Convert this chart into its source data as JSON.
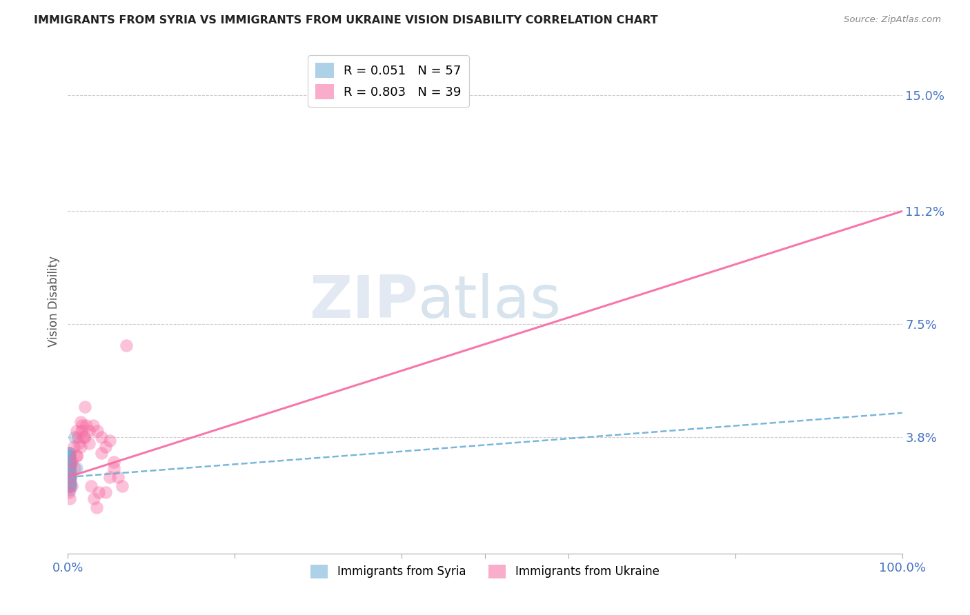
{
  "title": "IMMIGRANTS FROM SYRIA VS IMMIGRANTS FROM UKRAINE VISION DISABILITY CORRELATION CHART",
  "source": "Source: ZipAtlas.com",
  "ylabel_label": "Vision Disability",
  "ytick_labels": [
    "",
    "3.8%",
    "7.5%",
    "11.2%",
    "15.0%"
  ],
  "ytick_values": [
    0.0,
    0.038,
    0.075,
    0.112,
    0.15
  ],
  "xlim": [
    0.0,
    1.0
  ],
  "ylim": [
    0.0,
    0.165
  ],
  "R_syria": 0.051,
  "N_syria": 57,
  "R_ukraine": 0.803,
  "N_ukraine": 39,
  "syria_color": "#6baed6",
  "ukraine_color": "#f768a1",
  "watermark_zip": "ZIP",
  "watermark_atlas": "atlas",
  "syria_line_x": [
    0.0,
    1.0
  ],
  "syria_line_y": [
    0.025,
    0.046
  ],
  "ukraine_line_x": [
    0.0,
    1.0
  ],
  "ukraine_line_y": [
    0.025,
    0.112
  ],
  "syria_scatter_x": [
    0.001,
    0.002,
    0.001,
    0.002,
    0.003,
    0.001,
    0.002,
    0.003,
    0.001,
    0.002,
    0.003,
    0.002,
    0.001,
    0.003,
    0.002,
    0.001,
    0.003,
    0.002,
    0.001,
    0.002,
    0.003,
    0.001,
    0.002,
    0.001,
    0.002,
    0.001,
    0.002,
    0.003,
    0.001,
    0.002,
    0.001,
    0.002,
    0.003,
    0.001,
    0.002,
    0.001,
    0.002,
    0.001,
    0.002,
    0.001,
    0.002,
    0.001,
    0.002,
    0.001,
    0.002,
    0.001,
    0.002,
    0.001,
    0.002,
    0.003,
    0.001,
    0.002,
    0.001,
    0.002,
    0.001,
    0.01,
    0.008
  ],
  "syria_scatter_y": [
    0.03,
    0.028,
    0.033,
    0.025,
    0.022,
    0.031,
    0.026,
    0.029,
    0.024,
    0.027,
    0.023,
    0.032,
    0.028,
    0.026,
    0.021,
    0.029,
    0.025,
    0.033,
    0.027,
    0.03,
    0.024,
    0.028,
    0.022,
    0.031,
    0.026,
    0.023,
    0.029,
    0.027,
    0.032,
    0.025,
    0.028,
    0.024,
    0.03,
    0.022,
    0.027,
    0.031,
    0.025,
    0.029,
    0.023,
    0.028,
    0.033,
    0.024,
    0.03,
    0.026,
    0.022,
    0.028,
    0.031,
    0.025,
    0.029,
    0.023,
    0.027,
    0.032,
    0.024,
    0.03,
    0.026,
    0.028,
    0.038
  ],
  "ukraine_scatter_x": [
    0.001,
    0.003,
    0.005,
    0.007,
    0.01,
    0.012,
    0.015,
    0.017,
    0.02,
    0.01,
    0.015,
    0.02,
    0.025,
    0.03,
    0.035,
    0.04,
    0.045,
    0.05,
    0.055,
    0.06,
    0.065,
    0.002,
    0.005,
    0.008,
    0.01,
    0.013,
    0.016,
    0.019,
    0.022,
    0.025,
    0.028,
    0.031,
    0.034,
    0.037,
    0.04,
    0.045,
    0.05,
    0.055,
    0.07
  ],
  "ukraine_scatter_y": [
    0.02,
    0.025,
    0.022,
    0.035,
    0.04,
    0.038,
    0.043,
    0.042,
    0.048,
    0.032,
    0.035,
    0.038,
    0.04,
    0.042,
    0.04,
    0.038,
    0.02,
    0.025,
    0.028,
    0.025,
    0.022,
    0.018,
    0.03,
    0.028,
    0.032,
    0.036,
    0.04,
    0.038,
    0.042,
    0.036,
    0.022,
    0.018,
    0.015,
    0.02,
    0.033,
    0.035,
    0.037,
    0.03,
    0.068
  ]
}
